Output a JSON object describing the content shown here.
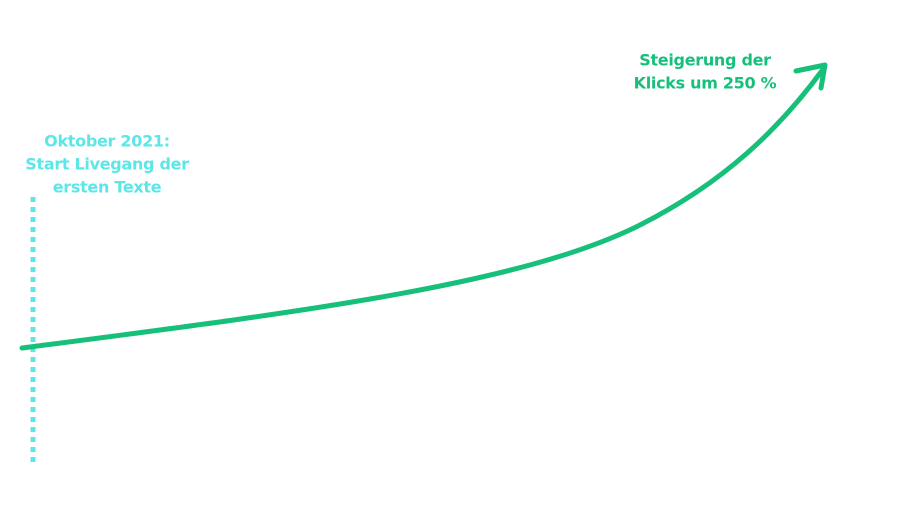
{
  "start_label": {
    "lines": [
      "Oktober 2021:",
      "Start Livegang der",
      "ersten Texte"
    ]
  },
  "end_label": {
    "lines": [
      "Steigerung der",
      "Klicks um 250 %"
    ]
  }
}
